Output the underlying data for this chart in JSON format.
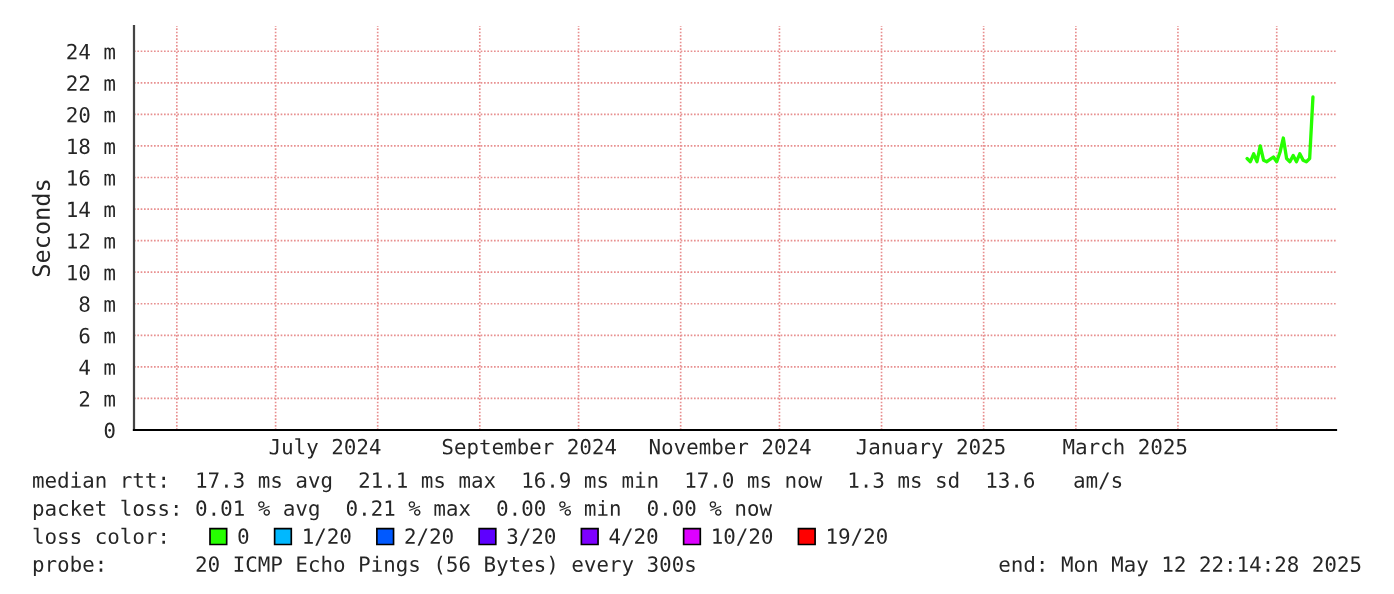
{
  "chart_data": {
    "type": "line",
    "ylabel": "Seconds",
    "x": [
      "2025-04-22",
      "2025-04-23",
      "2025-04-24",
      "2025-04-25",
      "2025-04-26",
      "2025-04-27",
      "2025-04-28",
      "2025-04-30",
      "2025-05-01",
      "2025-05-02",
      "2025-05-03",
      "2025-05-04",
      "2025-05-05",
      "2025-05-06",
      "2025-05-07",
      "2025-05-08",
      "2025-05-09",
      "2025-05-10",
      "2025-05-11",
      "2025-05-12"
    ],
    "series": [
      {
        "name": "0",
        "color": "#26ff00",
        "values": [
          17.2,
          17.0,
          17.5,
          17.0,
          18.0,
          17.1,
          17.0,
          17.3,
          17.0,
          17.6,
          18.5,
          17.2,
          17.0,
          17.4,
          17.0,
          17.5,
          17.1,
          17.0,
          17.2,
          21.1
        ]
      },
      {
        "name": "1/20",
        "color": "#00b8ff",
        "values": [
          null,
          null,
          null,
          null,
          null,
          null,
          null,
          null,
          null,
          null,
          null,
          null,
          null,
          null,
          null,
          null,
          null,
          null,
          null,
          null
        ]
      },
      {
        "name": "2/20",
        "color": "#0059ff",
        "values": [
          null,
          null,
          null,
          null,
          null,
          null,
          null,
          null,
          null,
          null,
          null,
          null,
          null,
          null,
          null,
          null,
          null,
          null,
          null,
          null
        ]
      },
      {
        "name": "3/20",
        "color": "#5e00ff",
        "values": [
          null,
          null,
          null,
          null,
          null,
          null,
          null,
          null,
          null,
          null,
          null,
          null,
          null,
          null,
          null,
          null,
          null,
          null,
          null,
          null
        ]
      },
      {
        "name": "4/20",
        "color": "#7e00ff",
        "values": [
          null,
          null,
          null,
          null,
          null,
          null,
          null,
          null,
          null,
          null,
          null,
          null,
          null,
          null,
          null,
          null,
          null,
          null,
          null,
          null
        ]
      },
      {
        "name": "10/20",
        "color": "#dd00ff",
        "values": [
          null,
          null,
          null,
          null,
          null,
          null,
          null,
          null,
          null,
          null,
          null,
          null,
          null,
          null,
          null,
          null,
          null,
          null,
          null,
          null
        ]
      },
      {
        "name": "19/20",
        "color": "#ff0000",
        "values": [
          null,
          null,
          null,
          null,
          null,
          null,
          null,
          null,
          null,
          null,
          null,
          null,
          null,
          null,
          null,
          null,
          null,
          null,
          null,
          null
        ]
      }
    ],
    "xlim": [
      "2024-05-19",
      "2025-05-19"
    ],
    "xticks": [
      {
        "value": "2024-06-01",
        "label": null
      },
      {
        "value": "2024-07-01",
        "label": null
      },
      {
        "value": "2024-07-16",
        "label": "July 2024"
      },
      {
        "value": "2024-08-01",
        "label": null
      },
      {
        "value": "2024-09-01",
        "label": null
      },
      {
        "value": "2024-09-16",
        "label": "September 2024"
      },
      {
        "value": "2024-10-01",
        "label": null
      },
      {
        "value": "2024-11-01",
        "label": null
      },
      {
        "value": "2024-11-16",
        "label": "November 2024"
      },
      {
        "value": "2024-12-01",
        "label": null
      },
      {
        "value": "2025-01-01",
        "label": null
      },
      {
        "value": "2025-01-16",
        "label": "January 2025"
      },
      {
        "value": "2025-02-01",
        "label": null
      },
      {
        "value": "2025-03-01",
        "label": null
      },
      {
        "value": "2025-03-16",
        "label": "March 2025"
      },
      {
        "value": "2025-04-01",
        "label": null
      },
      {
        "value": "2025-05-01",
        "label": null
      }
    ],
    "ylim": [
      0,
      25.6
    ],
    "yticks": [
      0,
      {
        "value": 2,
        "label": "2 m"
      },
      {
        "value": 4,
        "label": "4 m"
      },
      {
        "value": 6,
        "label": "6 m"
      },
      {
        "value": 8,
        "label": "8 m"
      },
      {
        "value": 10,
        "label": "10 m"
      },
      {
        "value": 12,
        "label": "12 m"
      },
      {
        "value": 14,
        "label": "14 m"
      },
      {
        "value": 16,
        "label": "16 m"
      },
      {
        "value": 18,
        "label": "18 m"
      },
      {
        "value": 20,
        "label": "20 m"
      },
      {
        "value": 22,
        "label": "22 m"
      },
      {
        "value": 24,
        "label": "24 m"
      }
    ],
    "grid": true,
    "legend": "bottom",
    "annotations": [
      "median rtt:  17.3 ms avg  21.1 ms max  16.9 ms min  17.0 ms now  1.3 ms sd  13.6   am/s",
      "packet loss: 0.01 % avg  0.21 % max  0.00 % min  0.00 % now",
      "loss color:",
      "probe:       20 ICMP Echo Pings (56 Bytes) every 300s",
      "end: Mon May 12 22:14:28 2025"
    ]
  }
}
